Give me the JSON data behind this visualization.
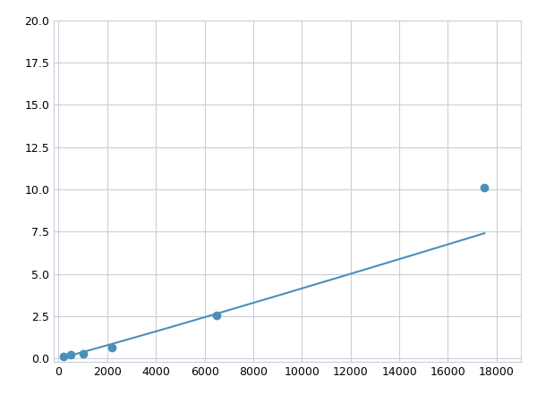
{
  "x": [
    200,
    500,
    1000,
    2200,
    6500,
    17500
  ],
  "y": [
    0.1,
    0.2,
    0.25,
    0.65,
    2.55,
    10.1
  ],
  "line_color": "#4a90b8",
  "marker_color": "#4a90b8",
  "marker_size": 6,
  "marker_style": "o",
  "linewidth": 1.5,
  "xlim": [
    -200,
    19000
  ],
  "ylim": [
    -0.2,
    20.0
  ],
  "xticks": [
    0,
    2000,
    4000,
    6000,
    8000,
    10000,
    12000,
    14000,
    16000,
    18000
  ],
  "yticks": [
    0.0,
    2.5,
    5.0,
    7.5,
    10.0,
    12.5,
    15.0,
    17.5,
    20.0
  ],
  "grid": true,
  "grid_color": "#c8d0d8",
  "background_color": "#ffffff",
  "figsize": [
    6.0,
    4.5
  ],
  "dpi": 100
}
